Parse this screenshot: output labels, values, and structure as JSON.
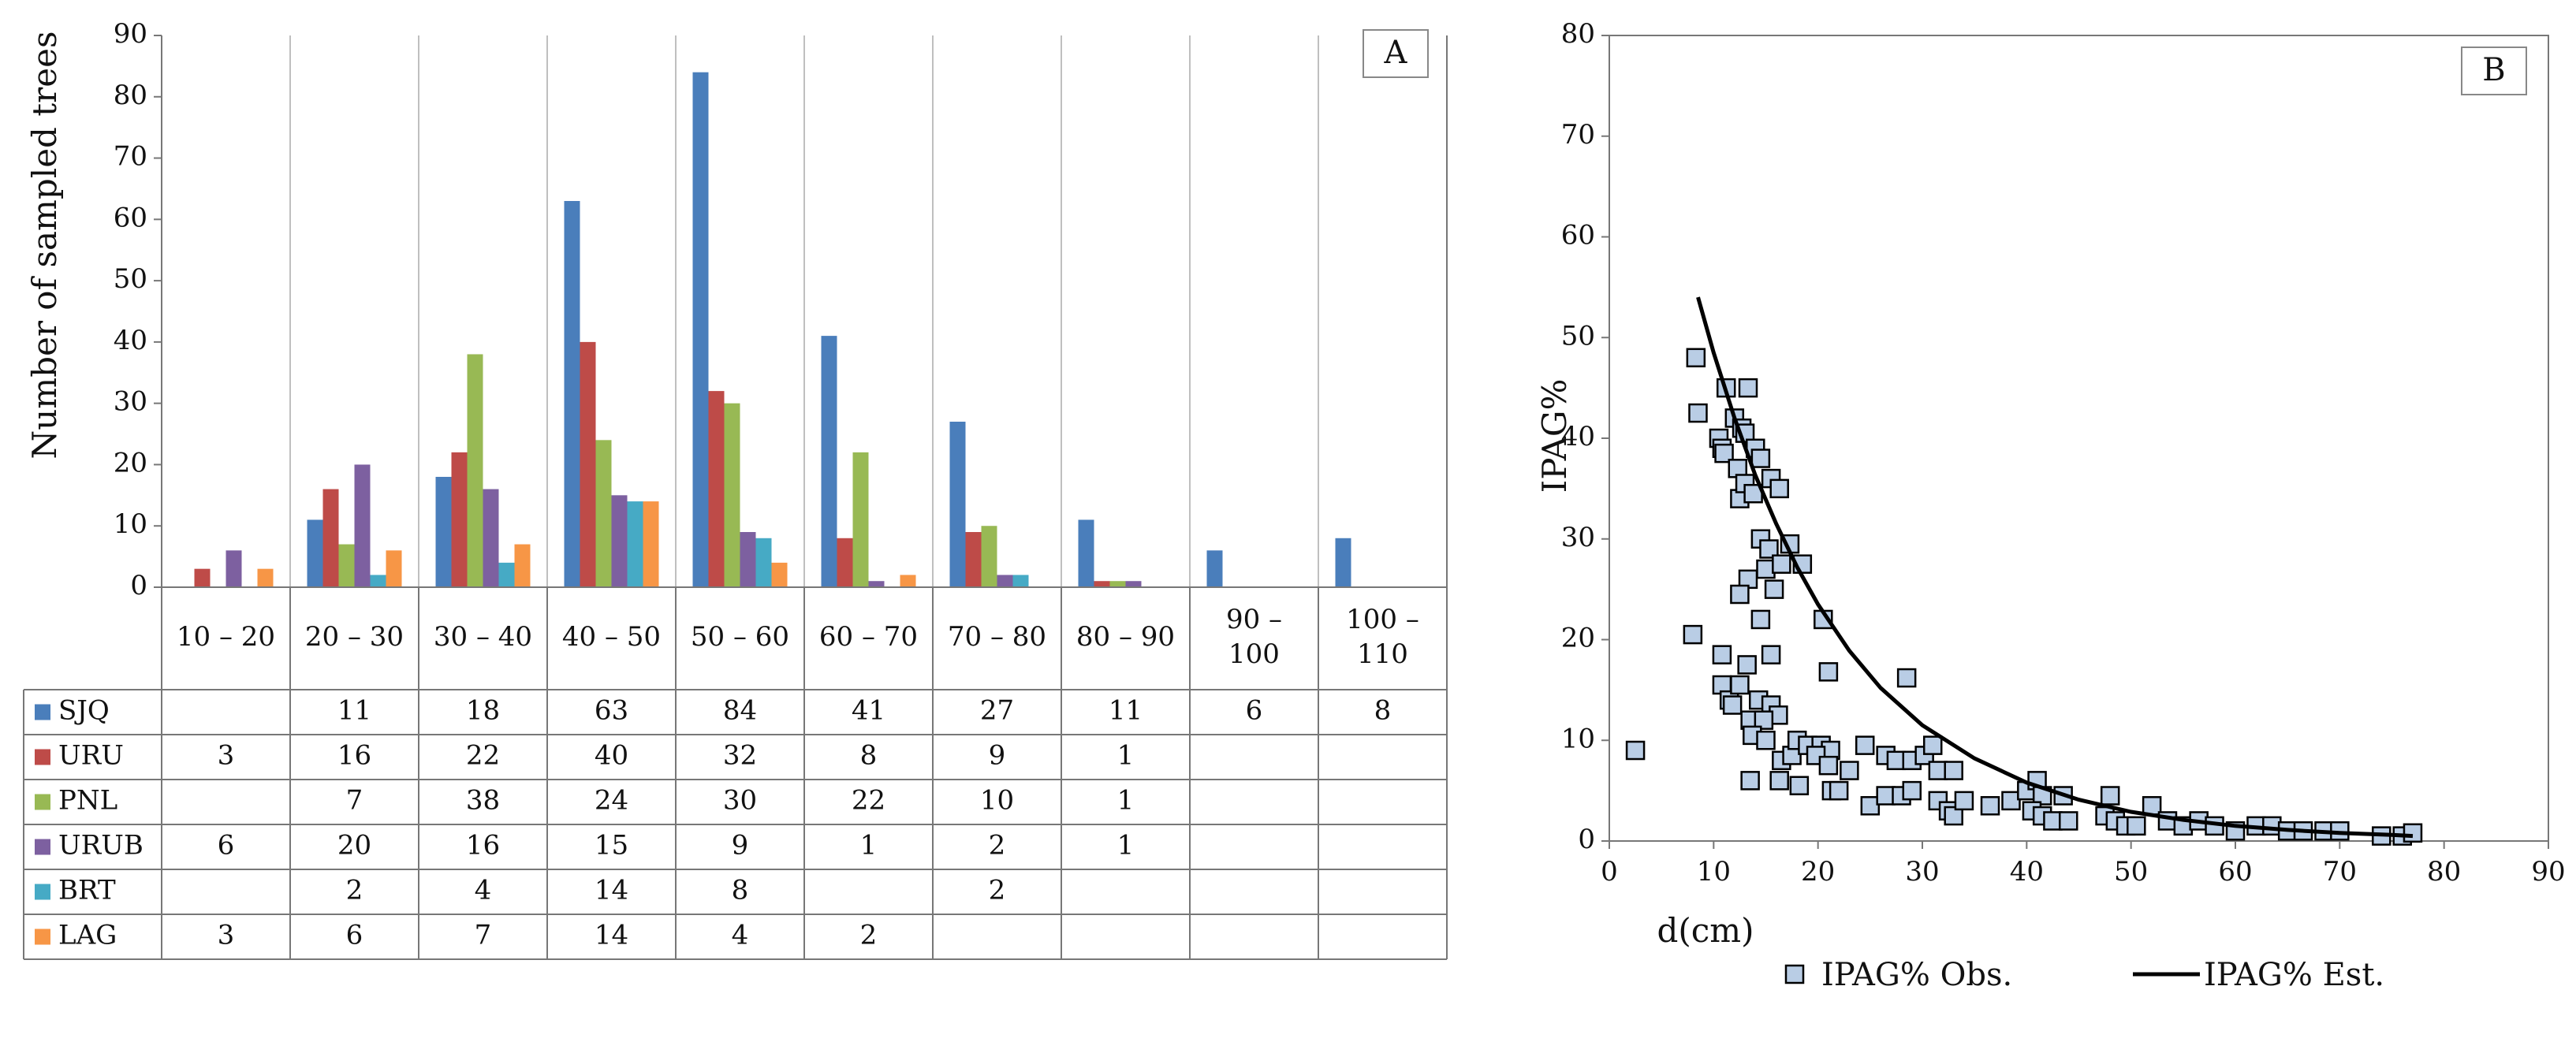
{
  "chart_data": [
    {
      "panel": "A",
      "type": "bar",
      "ylabel": "Number of sampled trees",
      "ylim": [
        0,
        90
      ],
      "yticks": [
        0,
        10,
        20,
        30,
        40,
        50,
        60,
        70,
        80,
        90
      ],
      "categories": [
        "10 – 20",
        "20 – 30",
        "30 – 40",
        "40 – 50",
        "50 – 60",
        "60 – 70",
        "70 – 80",
        "80 – 90",
        "90 –\n100",
        "100 –\n110"
      ],
      "category_lines": [
        [
          "10 – 20"
        ],
        [
          "20 – 30"
        ],
        [
          "30 – 40"
        ],
        [
          "40 – 50"
        ],
        [
          "50 – 60"
        ],
        [
          "60 – 70"
        ],
        [
          "70 – 80"
        ],
        [
          "80 – 90"
        ],
        [
          "90 –",
          "100"
        ],
        [
          "100 –",
          "110"
        ]
      ],
      "series": [
        {
          "name": "SJQ",
          "color": "#4A7EBB",
          "values": [
            null,
            11,
            18,
            63,
            84,
            41,
            27,
            11,
            6,
            8
          ]
        },
        {
          "name": "URU",
          "color": "#BE4B48",
          "values": [
            3,
            16,
            22,
            40,
            32,
            8,
            9,
            1,
            null,
            null
          ]
        },
        {
          "name": "PNL",
          "color": "#98B954",
          "values": [
            null,
            7,
            38,
            24,
            30,
            22,
            10,
            1,
            null,
            null
          ]
        },
        {
          "name": "URUB",
          "color": "#7D60A0",
          "values": [
            6,
            20,
            16,
            15,
            9,
            1,
            2,
            1,
            null,
            null
          ]
        },
        {
          "name": "BRT",
          "color": "#46AAC5",
          "values": [
            null,
            2,
            4,
            14,
            8,
            null,
            2,
            null,
            null,
            null
          ]
        },
        {
          "name": "LAG",
          "color": "#F79646",
          "values": [
            3,
            6,
            7,
            14,
            4,
            2,
            null,
            null,
            null,
            null
          ]
        }
      ]
    },
    {
      "panel": "B",
      "type": "scatter",
      "xlabel": "d(cm)",
      "ylabel": "IPAG%",
      "xlim": [
        0,
        90
      ],
      "ylim": [
        0,
        80
      ],
      "xticks": [
        0,
        10,
        20,
        30,
        40,
        50,
        60,
        70,
        80,
        90
      ],
      "yticks": [
        0,
        10,
        20,
        30,
        40,
        50,
        60,
        70,
        80
      ],
      "legend": [
        "IPAG% Obs.",
        "IPAG% Est."
      ],
      "marker_color": "#B9CDE5",
      "observed": [
        [
          2.5,
          9
        ],
        [
          8,
          20.5
        ],
        [
          8.3,
          48
        ],
        [
          8.5,
          42.5
        ],
        [
          10.5,
          40
        ],
        [
          10.8,
          39
        ],
        [
          11.2,
          45
        ],
        [
          11,
          38.5
        ],
        [
          12,
          42
        ],
        [
          12.3,
          37
        ],
        [
          12.7,
          41
        ],
        [
          13,
          40.5
        ],
        [
          13.3,
          45
        ],
        [
          12.5,
          34
        ],
        [
          13,
          35.5
        ],
        [
          13.8,
          34.5
        ],
        [
          14,
          39
        ],
        [
          14.5,
          38
        ],
        [
          15.5,
          36
        ],
        [
          16.3,
          35
        ],
        [
          14.5,
          30
        ],
        [
          15.3,
          29
        ],
        [
          17.3,
          29.5
        ],
        [
          18.5,
          27.5
        ],
        [
          15,
          27
        ],
        [
          16.5,
          27.5
        ],
        [
          13.3,
          26
        ],
        [
          15.8,
          25
        ],
        [
          12.5,
          24.5
        ],
        [
          14.5,
          22
        ],
        [
          20.5,
          22
        ],
        [
          10.8,
          18.5
        ],
        [
          13.2,
          17.5
        ],
        [
          15.5,
          18.5
        ],
        [
          21,
          16.8
        ],
        [
          28.5,
          16.2
        ],
        [
          10.8,
          15.5
        ],
        [
          11.5,
          14
        ],
        [
          11.8,
          13.5
        ],
        [
          12.5,
          15.5
        ],
        [
          14.3,
          14
        ],
        [
          15.5,
          13.5
        ],
        [
          16.2,
          12.5
        ],
        [
          13.5,
          12
        ],
        [
          14.8,
          12
        ],
        [
          13.7,
          10.5
        ],
        [
          15,
          10
        ],
        [
          16.5,
          8
        ],
        [
          17.5,
          8.5
        ],
        [
          18,
          10
        ],
        [
          19,
          9.5
        ],
        [
          20.3,
          9.5
        ],
        [
          21.2,
          9
        ],
        [
          19.8,
          8.5
        ],
        [
          21,
          7.5
        ],
        [
          23,
          7
        ],
        [
          24.5,
          9.5
        ],
        [
          26.5,
          8.5
        ],
        [
          27.5,
          8
        ],
        [
          29,
          8
        ],
        [
          30.2,
          8.5
        ],
        [
          31,
          9.5
        ],
        [
          31.5,
          7
        ],
        [
          33,
          7
        ],
        [
          13.5,
          6
        ],
        [
          16.3,
          6
        ],
        [
          18.2,
          5.5
        ],
        [
          21.3,
          5
        ],
        [
          22,
          5
        ],
        [
          25,
          3.5
        ],
        [
          26.5,
          4.5
        ],
        [
          28,
          4.5
        ],
        [
          29,
          5
        ],
        [
          31.5,
          4
        ],
        [
          32.5,
          3
        ],
        [
          33,
          2.5
        ],
        [
          34,
          4
        ],
        [
          36.5,
          3.5
        ],
        [
          38.5,
          4
        ],
        [
          40,
          5
        ],
        [
          41,
          6
        ],
        [
          41.5,
          4.5
        ],
        [
          40.5,
          3
        ],
        [
          41.5,
          2.5
        ],
        [
          42.5,
          2
        ],
        [
          43.5,
          4.5
        ],
        [
          44,
          2
        ],
        [
          47.5,
          2.5
        ],
        [
          48,
          4.5
        ],
        [
          48.5,
          2
        ],
        [
          49.5,
          1.5
        ],
        [
          50.5,
          1.5
        ],
        [
          52,
          3.5
        ],
        [
          53.5,
          2
        ],
        [
          55,
          1.5
        ],
        [
          56.5,
          2
        ],
        [
          58,
          1.5
        ],
        [
          60,
          1
        ],
        [
          62,
          1.5
        ],
        [
          63.5,
          1.5
        ],
        [
          65,
          1
        ],
        [
          66.5,
          1
        ],
        [
          68.5,
          1
        ],
        [
          70,
          1
        ],
        [
          74,
          0.5
        ],
        [
          76,
          0.5
        ],
        [
          77,
          0.8
        ]
      ],
      "estimated_curve": [
        [
          8.5,
          54
        ],
        [
          10,
          48.5
        ],
        [
          12,
          42
        ],
        [
          14,
          36.3
        ],
        [
          16,
          31.5
        ],
        [
          18,
          27.2
        ],
        [
          20,
          23.5
        ],
        [
          23,
          18.9
        ],
        [
          26,
          15.2
        ],
        [
          30,
          11.5
        ],
        [
          35,
          8.2
        ],
        [
          40,
          5.8
        ],
        [
          45,
          4.1
        ],
        [
          50,
          2.9
        ],
        [
          55,
          2.1
        ],
        [
          60,
          1.5
        ],
        [
          65,
          1.1
        ],
        [
          70,
          0.8
        ],
        [
          75,
          0.6
        ],
        [
          77,
          0.5
        ]
      ]
    }
  ]
}
